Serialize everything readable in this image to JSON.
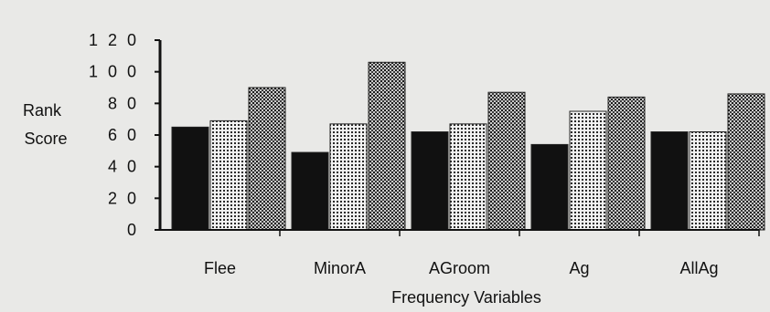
{
  "chart_data": {
    "type": "bar",
    "categories": [
      "Flee",
      "MinorA",
      "AGroom",
      "Ag",
      "AllAg"
    ],
    "series": [
      {
        "values": [
          65,
          49,
          62,
          54,
          62
        ],
        "color": "#111111",
        "pattern": "solid"
      },
      {
        "values": [
          69,
          67,
          67,
          75,
          62
        ],
        "color": "#bdbdbd",
        "pattern": "fine-dots"
      },
      {
        "values": [
          90,
          106,
          87,
          84,
          86
        ],
        "color": "#8f8f8f",
        "pattern": "dense-dots"
      }
    ],
    "yticks": [
      "1 2 0",
      "1 0 0",
      "8 0",
      "6 0",
      "4 0",
      "2 0",
      "0"
    ],
    "ytick_values": [
      120,
      100,
      80,
      60,
      40,
      20,
      0
    ],
    "ylim": [
      0,
      120
    ],
    "ylabel_line1": "Rank",
    "ylabel_line2": "Score",
    "xlabel": "Frequency Variables",
    "grid": false,
    "legend": "none"
  }
}
